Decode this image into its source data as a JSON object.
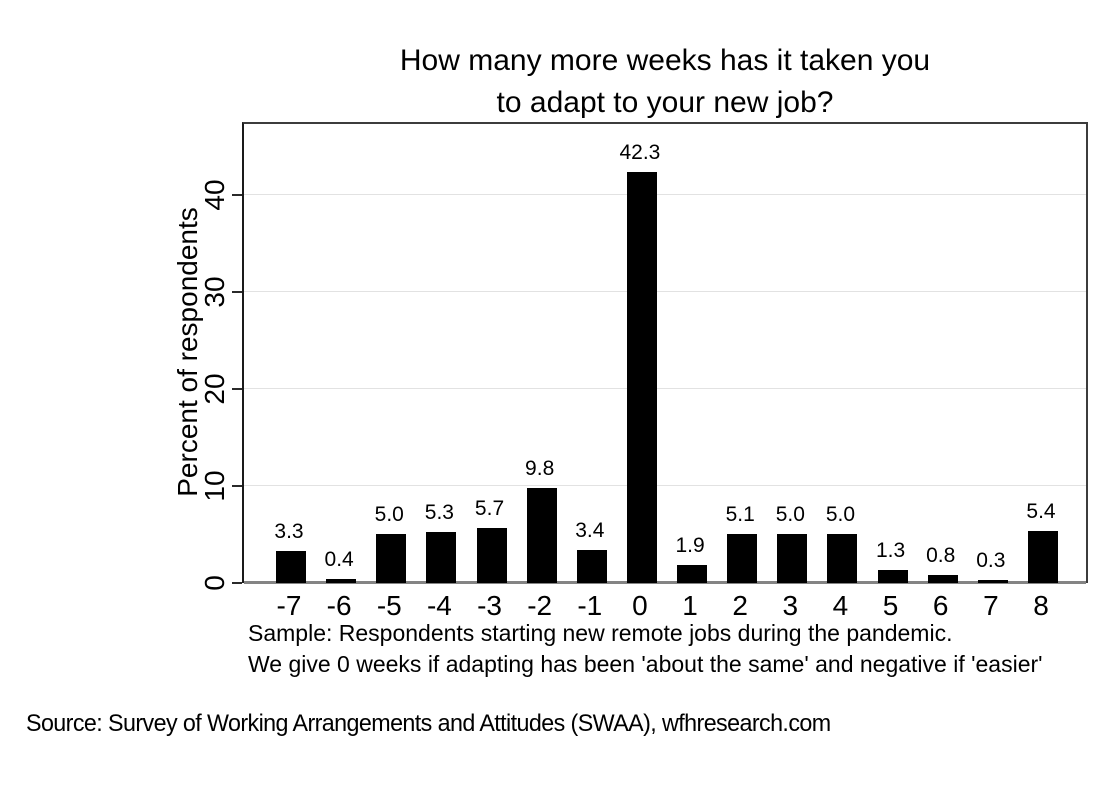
{
  "title": {
    "line1": "How many more weeks has it taken you",
    "line2": "to adapt to your new job?"
  },
  "chart_data": {
    "type": "bar",
    "categories": [
      "-7",
      "-6",
      "-5",
      "-4",
      "-3",
      "-2",
      "-1",
      "0",
      "1",
      "2",
      "3",
      "4",
      "5",
      "6",
      "7",
      "8"
    ],
    "values": [
      3.3,
      0.4,
      5.0,
      5.3,
      5.7,
      9.8,
      3.4,
      42.3,
      1.9,
      5.1,
      5.0,
      5.0,
      1.3,
      0.8,
      0.3,
      5.4
    ],
    "title": "How many more weeks has it taken you to adapt to your new job?",
    "xlabel": "",
    "ylabel": "Percent of respondents",
    "yticks": [
      0,
      10,
      20,
      30,
      40
    ],
    "ylim": [
      0,
      47.5
    ],
    "grid": true,
    "value_labels": true,
    "legend": "none"
  },
  "notes": {
    "line1": "Sample: Respondents starting new remote jobs during the pandemic.",
    "line2": "We give 0 weeks if adapting has been 'about the same' and negative if 'easier'"
  },
  "source": "Source: Survey of Working Arrangements and Attitudes (SWAA), wfhresearch.com",
  "colors": {
    "bar": "#000000",
    "grid": "#e2e2e2",
    "x_axis_line": "#848484",
    "frame": "#3c3c3c",
    "background": "#ffffff",
    "text": "#000000"
  }
}
